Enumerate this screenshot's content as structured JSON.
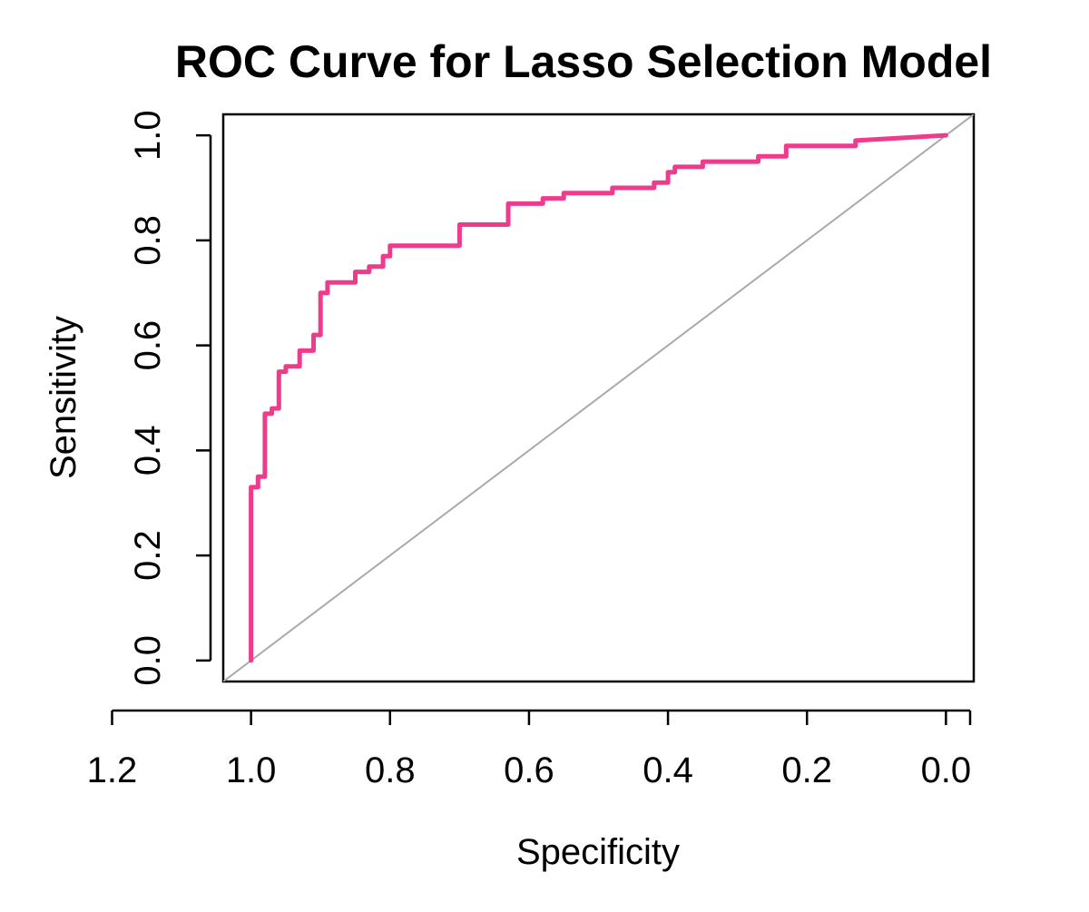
{
  "chart_data": {
    "type": "line",
    "title": "ROC Curve for Lasso Selection Model",
    "xlabel": "Specificity",
    "ylabel": "Sensitivity",
    "x_reversed": true,
    "xlim": [
      1.04,
      -0.04
    ],
    "ylim": [
      -0.04,
      1.04
    ],
    "x_ticks": [
      1.2,
      1.0,
      0.8,
      0.6,
      0.4,
      0.2,
      0.0
    ],
    "x_tick_labels": [
      "1.2",
      "1.0",
      "0.8",
      "0.6",
      "0.4",
      "0.2",
      "0.0"
    ],
    "y_ticks": [
      0.0,
      0.2,
      0.4,
      0.6,
      0.8,
      1.0
    ],
    "y_tick_labels": [
      "0.0",
      "0.2",
      "0.4",
      "0.6",
      "0.8",
      "1.0"
    ],
    "grid": false,
    "series": [
      {
        "color": "#ee3b8b",
        "x": [
          1.0,
          1.0,
          0.99,
          0.99,
          0.98,
          0.98,
          0.97,
          0.97,
          0.96,
          0.96,
          0.95,
          0.95,
          0.93,
          0.93,
          0.91,
          0.91,
          0.9,
          0.9,
          0.89,
          0.89,
          0.85,
          0.85,
          0.83,
          0.83,
          0.81,
          0.81,
          0.8,
          0.8,
          0.79,
          0.79,
          0.7,
          0.7,
          0.68,
          0.68,
          0.63,
          0.63,
          0.58,
          0.58,
          0.55,
          0.55,
          0.48,
          0.48,
          0.42,
          0.42,
          0.4,
          0.4,
          0.39,
          0.39,
          0.35,
          0.35,
          0.27,
          0.27,
          0.23,
          0.23,
          0.13,
          0.13,
          0.0
        ],
        "y": [
          0.0,
          0.33,
          0.33,
          0.35,
          0.35,
          0.47,
          0.47,
          0.48,
          0.48,
          0.55,
          0.55,
          0.56,
          0.56,
          0.59,
          0.59,
          0.62,
          0.62,
          0.7,
          0.7,
          0.72,
          0.72,
          0.74,
          0.74,
          0.75,
          0.75,
          0.77,
          0.77,
          0.79,
          0.79,
          0.79,
          0.79,
          0.83,
          0.83,
          0.83,
          0.83,
          0.87,
          0.87,
          0.88,
          0.88,
          0.89,
          0.89,
          0.9,
          0.9,
          0.91,
          0.91,
          0.93,
          0.93,
          0.94,
          0.94,
          0.95,
          0.95,
          0.96,
          0.96,
          0.98,
          0.98,
          0.99,
          1.0
        ]
      }
    ],
    "reference_line": {
      "color": "#aaaaaa",
      "x": [
        1.0,
        0.0
      ],
      "y": [
        0.0,
        1.0
      ]
    }
  }
}
